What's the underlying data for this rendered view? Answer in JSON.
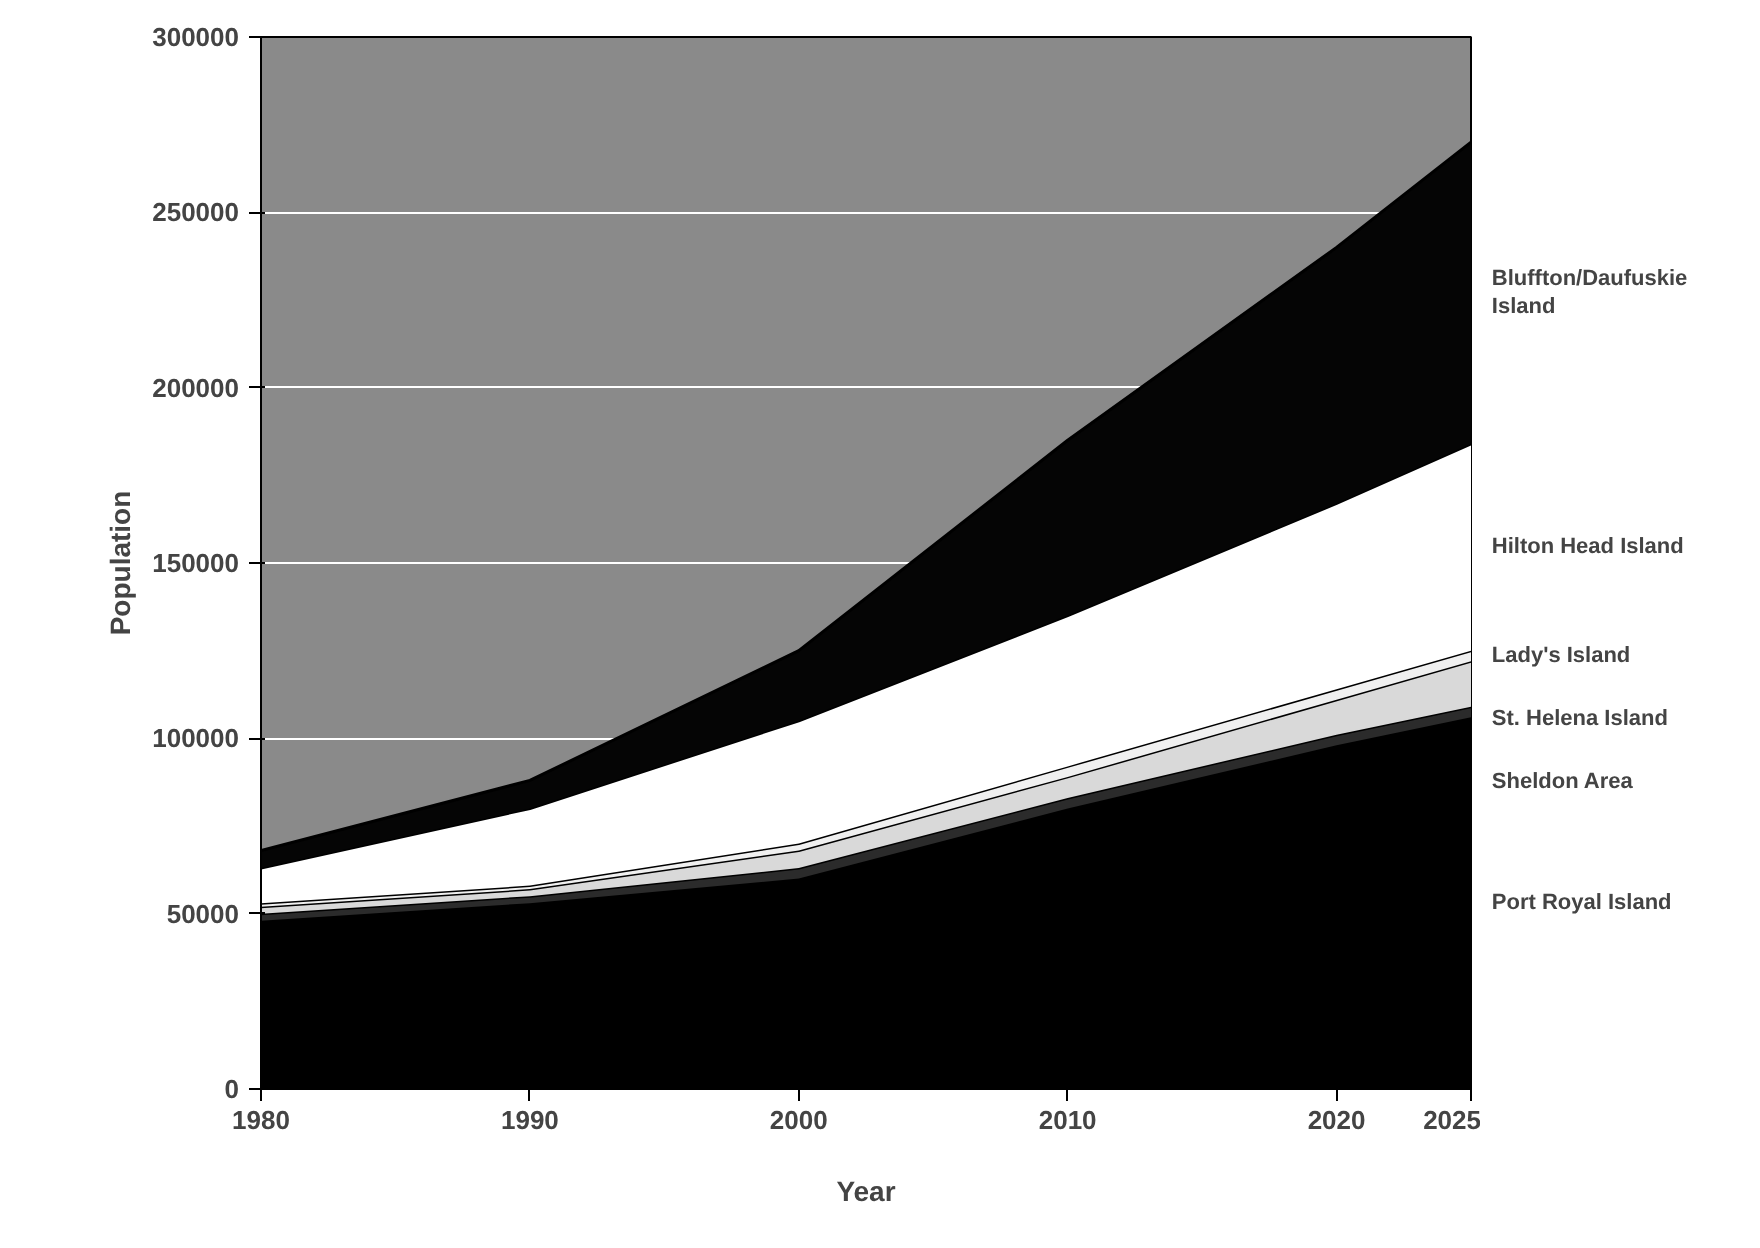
{
  "chart_data": {
    "type": "area",
    "stacked": true,
    "xlabel": "Year",
    "ylabel": "Population",
    "x": [
      1980,
      1990,
      2000,
      2010,
      2020,
      2025
    ],
    "xlim": [
      1980,
      2025
    ],
    "xticks": [
      1980,
      1990,
      2000,
      2010,
      2020,
      2025
    ],
    "ylim": [
      0,
      300000
    ],
    "yticks": [
      0,
      50000,
      100000,
      150000,
      200000,
      250000,
      300000
    ],
    "grid": "y",
    "series": [
      {
        "name": "Port Royal Island",
        "color": "#000000",
        "values": [
          48000,
          53000,
          60000,
          80000,
          98000,
          106000
        ]
      },
      {
        "name": "Sheldon Area",
        "color": "#2b2b2b",
        "values": [
          2000,
          2000,
          3000,
          3000,
          3000,
          3000
        ]
      },
      {
        "name": "St. Helena Island",
        "color": "#d9d9d9",
        "values": [
          2000,
          2000,
          5000,
          6000,
          10000,
          13000
        ]
      },
      {
        "name": "Lady's Island",
        "color": "#f0f0f0",
        "values": [
          1000,
          1000,
          2000,
          3000,
          3000,
          3000
        ]
      },
      {
        "name": "Hilton Head Island",
        "color": "#ffffff",
        "values": [
          10000,
          22000,
          35000,
          43000,
          53000,
          59000
        ]
      },
      {
        "name": "Bluffton/Daufuskie Island",
        "color": "#050505",
        "values": [
          5000,
          8000,
          20000,
          50000,
          73000,
          86000
        ]
      }
    ]
  }
}
